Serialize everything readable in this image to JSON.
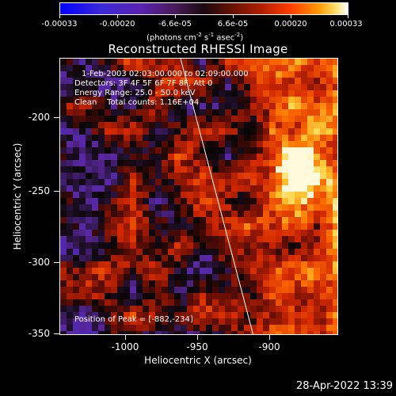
{
  "colorbar": {
    "labels": [
      "-0.00033",
      "-0.00020",
      "-6.6e-05",
      "6.6e-05",
      "0.00020",
      "0.00033"
    ],
    "units_text": "(photons cm",
    "units_exp1": "-2",
    "units_mid": " s",
    "units_exp2": "-1",
    "units_mid2": " asec",
    "units_exp3": "-2",
    "units_end": ")"
  },
  "title": "Reconstructed RHESSI Image",
  "info": {
    "time_range": "1-Feb-2003 02:03:00.000 to 02:09:00.000",
    "detectors": "Detectors: 3F 4F 5F 6F 7F 8F, Att 0",
    "energy": "Energy Range: 25.0 - 50.0 keV",
    "clean": "Clean    Total counts: 1.16E+04",
    "peak": "Position of Peak = [-882,-234]"
  },
  "axes": {
    "xlabel": "Heliocentric X (arcsec)",
    "ylabel": "Heliocentric Y (arcsec)",
    "xticks": [
      "-1000",
      "-950",
      "-900"
    ],
    "yticks": [
      "-200",
      "-250",
      "-300",
      "-350"
    ]
  },
  "datestamp": "28-Apr-2022 13:39",
  "colors": {
    "limb_line": "#ffffff",
    "frame": "#ffffff",
    "background": "#000000"
  }
}
